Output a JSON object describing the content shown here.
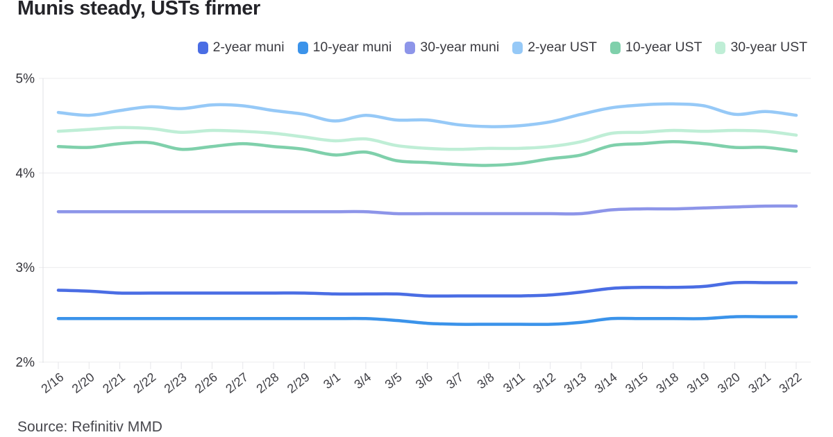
{
  "title": "Munis steady, USTs firmer",
  "source": "Source: Refinitiv MMD",
  "legend": [
    "2-year muni",
    "10-year muni",
    "30-year muni",
    "2-year UST",
    "10-year UST",
    "30-year UST"
  ],
  "chart_data": {
    "type": "line",
    "title": "Munis steady, USTs firmer",
    "xlabel": "",
    "ylabel": "",
    "ylim": [
      2,
      5
    ],
    "yticks": [
      2,
      3,
      4,
      5
    ],
    "ytick_labels": [
      "2%",
      "3%",
      "4%",
      "5%"
    ],
    "grid": "horizontal",
    "legend_position": "top-right",
    "x": [
      "2/16",
      "2/20",
      "2/21",
      "2/22",
      "2/23",
      "2/26",
      "2/27",
      "2/28",
      "2/29",
      "3/1",
      "3/4",
      "3/5",
      "3/6",
      "3/7",
      "3/8",
      "3/11",
      "3/12",
      "3/13",
      "3/14",
      "3/15",
      "3/18",
      "3/19",
      "3/20",
      "3/21",
      "3/22"
    ],
    "series": [
      {
        "name": "2-year muni",
        "color": "#4a6de4",
        "values": [
          2.76,
          2.75,
          2.73,
          2.73,
          2.73,
          2.73,
          2.73,
          2.73,
          2.73,
          2.72,
          2.72,
          2.72,
          2.7,
          2.7,
          2.7,
          2.7,
          2.71,
          2.74,
          2.78,
          2.79,
          2.79,
          2.8,
          2.84,
          2.84,
          2.84
        ]
      },
      {
        "name": "10-year muni",
        "color": "#3b93ea",
        "values": [
          2.46,
          2.46,
          2.46,
          2.46,
          2.46,
          2.46,
          2.46,
          2.46,
          2.46,
          2.46,
          2.46,
          2.44,
          2.41,
          2.4,
          2.4,
          2.4,
          2.4,
          2.42,
          2.46,
          2.46,
          2.46,
          2.46,
          2.48,
          2.48,
          2.48
        ]
      },
      {
        "name": "30-year muni",
        "color": "#8d95e9",
        "values": [
          3.59,
          3.59,
          3.59,
          3.59,
          3.59,
          3.59,
          3.59,
          3.59,
          3.59,
          3.59,
          3.59,
          3.57,
          3.57,
          3.57,
          3.57,
          3.57,
          3.57,
          3.57,
          3.61,
          3.62,
          3.62,
          3.63,
          3.64,
          3.65,
          3.65
        ]
      },
      {
        "name": "2-year UST",
        "color": "#96c9f7",
        "values": [
          4.64,
          4.61,
          4.66,
          4.7,
          4.68,
          4.72,
          4.71,
          4.66,
          4.62,
          4.55,
          4.61,
          4.56,
          4.56,
          4.51,
          4.49,
          4.5,
          4.54,
          4.62,
          4.69,
          4.72,
          4.73,
          4.71,
          4.62,
          4.65,
          4.61
        ]
      },
      {
        "name": "10-year UST",
        "color": "#7fd0ab",
        "values": [
          4.28,
          4.27,
          4.31,
          4.32,
          4.25,
          4.28,
          4.31,
          4.28,
          4.25,
          4.19,
          4.22,
          4.13,
          4.11,
          4.09,
          4.08,
          4.1,
          4.15,
          4.19,
          4.29,
          4.31,
          4.33,
          4.31,
          4.27,
          4.27,
          4.23
        ]
      },
      {
        "name": "30-year UST",
        "color": "#bfeed6",
        "values": [
          4.44,
          4.46,
          4.48,
          4.47,
          4.43,
          4.45,
          4.44,
          4.42,
          4.38,
          4.34,
          4.36,
          4.29,
          4.26,
          4.25,
          4.26,
          4.26,
          4.28,
          4.33,
          4.42,
          4.43,
          4.45,
          4.44,
          4.45,
          4.44,
          4.4
        ]
      }
    ]
  }
}
